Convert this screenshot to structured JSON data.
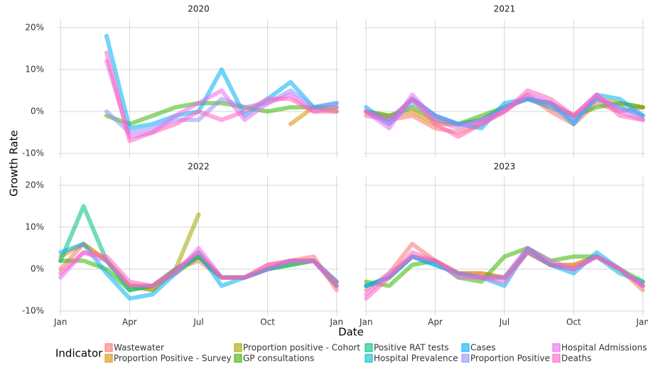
{
  "chart_data": {
    "type": "line",
    "x_label": "Date",
    "y_label": "Growth Rate",
    "legend_title": "Indicator",
    "panels": [
      "2020",
      "2021",
      "2022",
      "2023"
    ],
    "x": [
      0,
      1,
      2,
      3,
      4,
      5,
      6,
      7,
      8,
      9,
      10,
      11,
      12
    ],
    "xlim": [
      -0.1,
      12.1
    ],
    "xticks": [
      {
        "value": 0,
        "label": "Jan"
      },
      {
        "value": 3,
        "label": "Apr"
      },
      {
        "value": 6,
        "label": "Jul"
      },
      {
        "value": 9,
        "label": "Oct"
      },
      {
        "value": 12,
        "label": "Jan"
      }
    ],
    "ylim": [
      -11,
      22
    ],
    "yticks": [
      {
        "value": -10,
        "label": "-10%"
      },
      {
        "value": 0,
        "label": "0%"
      },
      {
        "value": 10,
        "label": "10%"
      },
      {
        "value": 20,
        "label": "20%"
      }
    ],
    "grid": true,
    "series": [
      {
        "name": "Wastewater",
        "color": "#F8766D",
        "values": [
          null,
          [
            -1,
            -2,
            -1,
            -4,
            -5,
            -3,
            0,
            4,
            0,
            -3,
            2,
            0,
            1
          ],
          [
            0,
            6,
            2,
            -4,
            -4,
            0,
            2,
            -2,
            -2,
            1,
            2,
            3,
            -5
          ],
          [
            -5,
            -1,
            6,
            2,
            -1,
            -1,
            -2,
            5,
            1,
            1,
            3,
            0,
            -5
          ]
        ]
      },
      {
        "name": "Proportion Positive - Survey",
        "color": "#D89000",
        "values": [
          [
            null,
            null,
            null,
            null,
            null,
            null,
            null,
            null,
            null,
            null,
            -3,
            1,
            0
          ],
          [
            0,
            -1,
            0,
            -3,
            -3,
            -2,
            1,
            3,
            2,
            -1,
            3,
            2,
            1
          ],
          [
            3,
            6,
            2,
            -4,
            -5,
            0,
            3,
            -2,
            -2,
            0,
            2,
            2,
            -4
          ],
          [
            -4,
            -2,
            3,
            2,
            -1,
            -1,
            -2,
            4,
            1,
            1,
            3,
            0,
            -4
          ]
        ]
      },
      {
        "name": "Proportion positive - Cohort",
        "color": "#A3A500",
        "values": [
          null,
          null,
          [
            null,
            null,
            null,
            -4,
            -5,
            0,
            13,
            null,
            null,
            null,
            null,
            null,
            null
          ],
          null
        ]
      },
      {
        "name": "GP consultations",
        "color": "#39B600",
        "values": [
          [
            null,
            null,
            -1,
            -3,
            -1,
            1,
            2,
            2,
            1,
            0,
            1,
            1,
            1
          ],
          [
            0,
            -1,
            1,
            -2,
            -3,
            -1,
            1,
            3,
            1,
            -1,
            1,
            2,
            1
          ],
          [
            2,
            2,
            0,
            -5,
            -4,
            -1,
            3,
            -2,
            -2,
            0,
            1,
            2,
            -3
          ],
          [
            -3,
            -4,
            1,
            2,
            -2,
            -3,
            3,
            5,
            2,
            3,
            3,
            0,
            -3
          ]
        ]
      },
      {
        "name": "Positive RAT tests",
        "color": "#00BF7D",
        "values": [
          null,
          null,
          [
            2,
            15,
            2,
            -5,
            -4,
            0,
            3,
            -2,
            -2,
            0,
            1,
            2,
            -3
          ],
          null
        ]
      },
      {
        "name": "Hospital Prevalence",
        "color": "#00BFC4",
        "values": [
          null,
          [
            0,
            -2,
            3,
            -1,
            -3,
            -2,
            1,
            3,
            2,
            -2,
            3,
            1,
            -1
          ],
          null,
          [
            -4,
            -2,
            3,
            1,
            -1,
            -2,
            -2,
            4,
            1,
            0,
            3,
            -1,
            -3
          ]
        ]
      },
      {
        "name": "Cases",
        "color": "#00B0F6",
        "values": [
          [
            null,
            null,
            18,
            -4,
            -3,
            -1,
            0,
            10,
            -1,
            3,
            7,
            1,
            2
          ],
          [
            1,
            -3,
            3,
            -1,
            -3,
            -4,
            2,
            3,
            2,
            -3,
            4,
            3,
            -1
          ],
          [
            4,
            6,
            -1,
            -7,
            -6,
            -1,
            4,
            -4,
            -2,
            0,
            2,
            2,
            -4
          ],
          [
            -4,
            -2,
            3,
            1,
            -1,
            -2,
            -4,
            5,
            1,
            -1,
            4,
            0,
            -4
          ]
        ]
      },
      {
        "name": "Proportion Positive",
        "color": "#9590FF",
        "values": [
          [
            null,
            null,
            0,
            -5,
            -4,
            -2,
            -2,
            3,
            1,
            2,
            5,
            1,
            2
          ],
          [
            0,
            -3,
            2,
            -1,
            -3,
            -3,
            1,
            3,
            1,
            -2,
            3,
            1,
            -1
          ],
          null,
          null
        ]
      },
      {
        "name": "Hospital Admissions",
        "color": "#E76BF3",
        "values": [
          [
            null,
            null,
            12,
            -6,
            -5,
            -1,
            2,
            5,
            -2,
            2,
            4,
            0,
            1
          ],
          [
            0,
            -4,
            4,
            -2,
            -4,
            -2,
            0,
            4,
            2,
            -1,
            4,
            0,
            -2
          ],
          [
            -2,
            4,
            2,
            -4,
            -4,
            -1,
            5,
            -2,
            -2,
            0,
            2,
            2,
            -3
          ],
          [
            -6,
            -1,
            3,
            2,
            -2,
            -2,
            -2,
            5,
            2,
            0,
            3,
            0,
            -4
          ]
        ]
      },
      {
        "name": "Deaths",
        "color": "#FF62BC",
        "values": [
          [
            null,
            null,
            14,
            -7,
            -5,
            -3,
            0,
            -2,
            0,
            3,
            3,
            0,
            0
          ],
          [
            0,
            -2,
            3,
            -3,
            -6,
            -3,
            0,
            5,
            3,
            -1,
            4,
            -1,
            -2
          ],
          [
            -1,
            4,
            3,
            -3,
            -4,
            0,
            4,
            -2,
            -2,
            1,
            2,
            2,
            -4
          ],
          [
            -7,
            -2,
            4,
            2,
            -1,
            -2,
            -3,
            4,
            1,
            0,
            3,
            0,
            -4
          ]
        ]
      }
    ]
  }
}
